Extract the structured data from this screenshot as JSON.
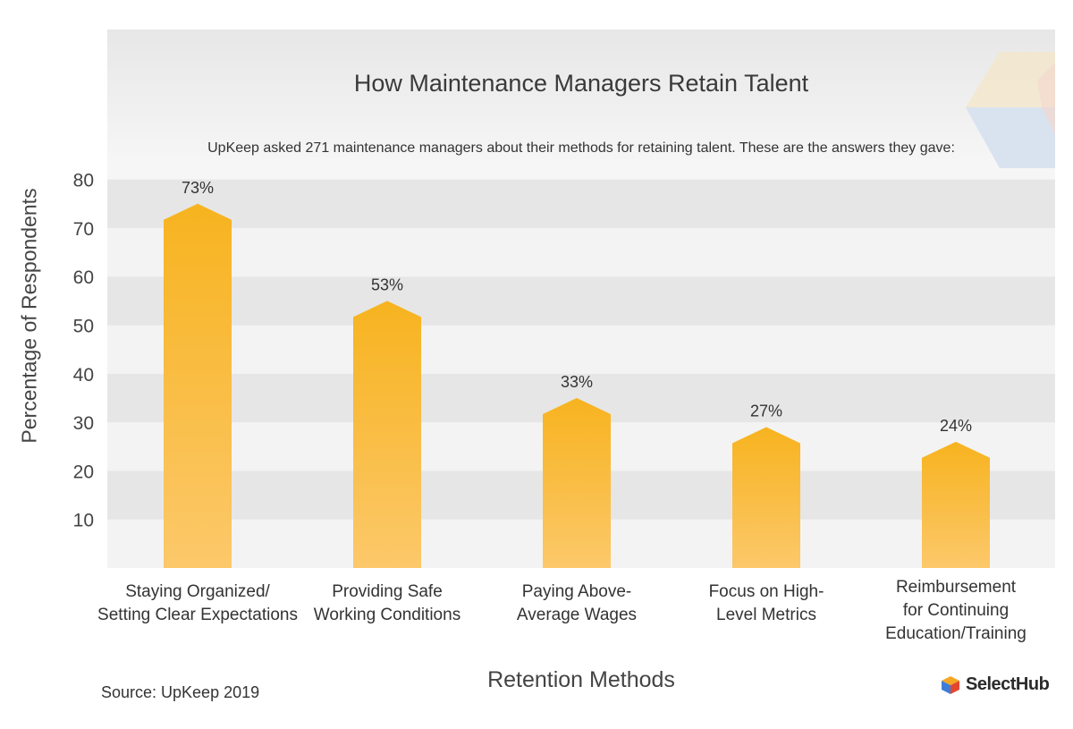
{
  "chart_data": {
    "type": "bar",
    "title": "How Maintenance Managers Retain Talent",
    "subtitle": "UpKeep asked 271 maintenance managers about their methods for retaining talent. These are the answers they gave:",
    "xlabel": "Retention Methods",
    "ylabel": "Percentage of Respondents",
    "ylim": [
      0,
      80
    ],
    "yticks": [
      10,
      20,
      30,
      40,
      50,
      60,
      70,
      80
    ],
    "categories": [
      "Staying Organized/\nSetting Clear Expectations",
      "Providing Safe\nWorking Conditions",
      "Paying Above-\nAverage Wages",
      "Focus on High-\nLevel Metrics",
      "Reimbursement\nfor Continuing\nEducation/Training"
    ],
    "values": [
      73,
      53,
      33,
      27,
      24
    ],
    "data_labels": [
      "73%",
      "53%",
      "33%",
      "27%",
      "24%"
    ],
    "grid": "alternating horizontal bands",
    "bar_color_top": "#f7b31f",
    "bar_color_bottom": "#fcc86a"
  },
  "footer": {
    "source": "Source: UpKeep 2019",
    "brand": "SelectHub"
  }
}
